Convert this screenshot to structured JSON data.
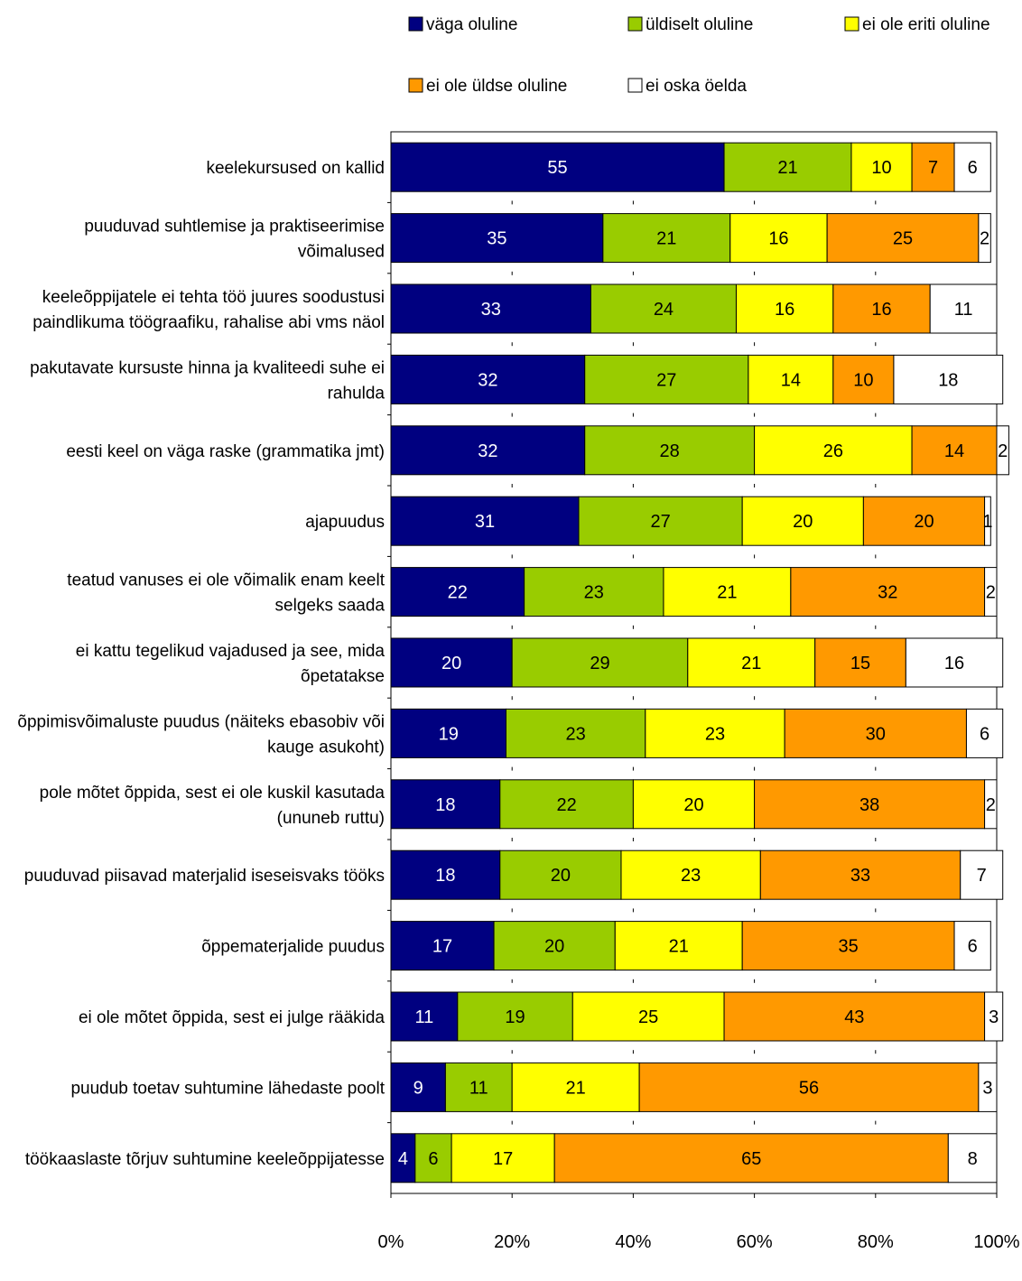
{
  "chart_data": {
    "type": "bar",
    "orientation": "horizontal",
    "stacked": true,
    "percent_stacked": true,
    "categories": [
      [
        "keelekursused on kallid"
      ],
      [
        "puuduvad suhtlemise ja praktiseerimise",
        "võimalused"
      ],
      [
        "keeleõppijatele ei tehta töö juures soodustusi",
        "paindlikuma töögraafiku, rahalise abi vms näol"
      ],
      [
        "pakutavate kursuste hinna ja kvaliteedi suhe ei",
        "rahulda"
      ],
      [
        "eesti keel on väga raske (grammatika jmt)"
      ],
      [
        "ajapuudus"
      ],
      [
        "teatud vanuses ei ole võimalik enam keelt",
        "selgeks saada"
      ],
      [
        "ei kattu tegelikud vajadused ja see, mida",
        "õpetatakse"
      ],
      [
        "õppimisvõimaluste puudus (näiteks ebasobiv või",
        "kauge asukoht)"
      ],
      [
        "pole mõtet õppida, sest ei ole kuskil kasutada",
        "(ununeb ruttu)"
      ],
      [
        "puuduvad piisavad materjalid iseseisvaks tööks"
      ],
      [
        "õppematerjalide puudus"
      ],
      [
        "ei ole mõtet õppida, sest ei julge rääkida"
      ],
      [
        "puudub toetav suhtumine lähedaste poolt"
      ],
      [
        "töökaaslaste tõrjuv suhtumine keeleõppijatesse"
      ]
    ],
    "series": [
      {
        "name": "väga oluline",
        "color": "#000080",
        "label_color": "#ffffff",
        "values": [
          55,
          35,
          33,
          32,
          32,
          31,
          22,
          20,
          19,
          18,
          18,
          17,
          11,
          9,
          4
        ]
      },
      {
        "name": "üldiselt oluline",
        "color": "#99cc00",
        "label_color": "#000000",
        "values": [
          21,
          21,
          24,
          27,
          28,
          27,
          23,
          29,
          23,
          22,
          20,
          20,
          19,
          11,
          6
        ]
      },
      {
        "name": "ei ole eriti oluline",
        "color": "#ffff00",
        "label_color": "#000000",
        "values": [
          10,
          16,
          16,
          14,
          26,
          20,
          21,
          21,
          23,
          20,
          23,
          21,
          25,
          21,
          17
        ]
      },
      {
        "name": "ei ole üldse oluline",
        "color": "#ff9900",
        "label_color": "#000000",
        "values": [
          7,
          25,
          16,
          10,
          14,
          20,
          32,
          15,
          30,
          38,
          33,
          35,
          43,
          56,
          65
        ]
      },
      {
        "name": "ei oska öelda",
        "color": "#ffffff",
        "label_color": "#000000",
        "values": [
          6,
          2,
          11,
          18,
          2,
          1,
          2,
          16,
          6,
          2,
          7,
          6,
          3,
          3,
          8
        ]
      }
    ],
    "xticks": [
      "0%",
      "20%",
      "40%",
      "60%",
      "80%",
      "100%"
    ],
    "xlim": [
      0,
      100
    ],
    "grid": false,
    "legend_position": "top"
  }
}
